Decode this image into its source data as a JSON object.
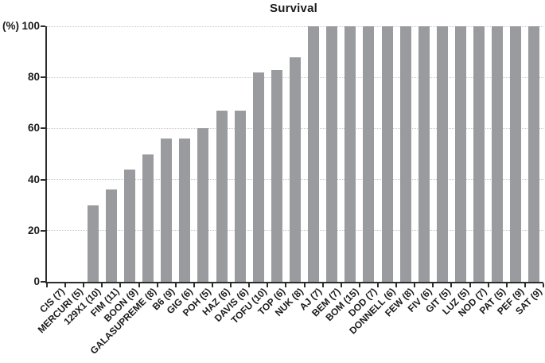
{
  "chart_data": {
    "type": "bar",
    "title": "Survival",
    "ylabel": "(%)",
    "xlabel": "",
    "categories": [
      "CIS (7)",
      "MERCURI (5)",
      "129X1 (10)",
      "FIM (11)",
      "BOON (9)",
      "GALASUPREME (8)",
      "B6 (9)",
      "GIG (6)",
      "POH (5)",
      "HAZ (6)",
      "DAVIS (6)",
      "TOFU (10)",
      "TOP (6)",
      "NUK (8)",
      "AJ (7)",
      "BEM (7)",
      "BOM (15)",
      "DOD (7)",
      "DONNELL (6)",
      "FEW (8)",
      "FIV (6)",
      "GIT (5)",
      "LUZ (5)",
      "NOD (7)",
      "PAT (5)",
      "PEF (9)",
      "SAT (9)"
    ],
    "values": [
      0,
      0,
      30,
      36,
      44,
      50,
      56,
      56,
      60,
      67,
      67,
      82,
      83,
      88,
      100,
      100,
      100,
      100,
      100,
      100,
      100,
      100,
      100,
      100,
      100,
      100,
      100
    ],
    "ylim": [
      0,
      100
    ],
    "yticks": [
      0,
      20,
      40,
      60,
      80,
      100
    ],
    "grid": "horizontal dotted lines at y ticks",
    "legend_position": "none",
    "colors": {
      "bar": "#9a9b9e",
      "axis": "#2d2d2f",
      "gridline": "#c9c9c9",
      "text": "#1a1a1a",
      "background": "#ffffff"
    }
  }
}
